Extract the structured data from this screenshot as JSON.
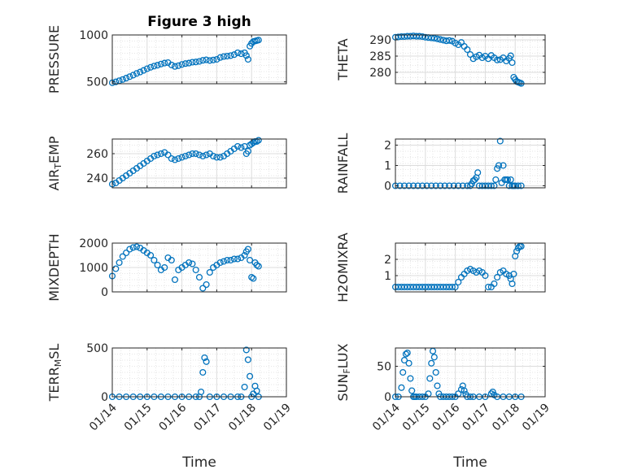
{
  "figure_title": "Figure 3 high",
  "marker_color": "#0072bd",
  "x_tick_labels": [
    "01/14",
    "01/15",
    "01/16",
    "01/17",
    "01/18",
    "01/19"
  ],
  "chart_data": [
    {
      "type": "scatter",
      "id": "pressure",
      "title": "Figure 3 high",
      "ylabel": "PRESSURE",
      "xlabel": "",
      "xlim": [
        0,
        5
      ],
      "ylim": [
        480,
        1000
      ],
      "yticks": [
        500,
        1000
      ],
      "xtick_labels_shown": false,
      "grid": true,
      "x": [
        0.0,
        0.1,
        0.2,
        0.3,
        0.4,
        0.5,
        0.6,
        0.7,
        0.8,
        0.9,
        1.0,
        1.1,
        1.2,
        1.3,
        1.4,
        1.5,
        1.6,
        1.7,
        1.8,
        1.9,
        2.0,
        2.1,
        2.2,
        2.3,
        2.4,
        2.5,
        2.6,
        2.7,
        2.8,
        2.9,
        3.0,
        3.1,
        3.2,
        3.3,
        3.4,
        3.5,
        3.6,
        3.7,
        3.8,
        3.85,
        3.9,
        3.95,
        4.0,
        4.05,
        4.1,
        4.15,
        4.2
      ],
      "y": [
        490,
        500,
        512,
        525,
        540,
        555,
        572,
        590,
        605,
        622,
        640,
        655,
        668,
        678,
        690,
        700,
        705,
        680,
        665,
        672,
        685,
        695,
        700,
        710,
        712,
        718,
        730,
        735,
        728,
        733,
        740,
        760,
        770,
        775,
        780,
        790,
        810,
        800,
        810,
        780,
        740,
        880,
        910,
        930,
        935,
        940,
        945
      ]
    },
    {
      "type": "scatter",
      "id": "theta",
      "title": "",
      "ylabel": "THETA",
      "xlabel": "",
      "xlim": [
        0,
        5
      ],
      "ylim": [
        276.5,
        291.5
      ],
      "yticks": [
        280,
        285,
        290
      ],
      "xtick_labels_shown": false,
      "grid": true,
      "x": [
        0.0,
        0.1,
        0.2,
        0.3,
        0.4,
        0.5,
        0.6,
        0.7,
        0.8,
        0.9,
        1.0,
        1.1,
        1.2,
        1.3,
        1.4,
        1.5,
        1.6,
        1.7,
        1.8,
        1.9,
        2.0,
        2.1,
        2.2,
        2.3,
        2.4,
        2.5,
        2.6,
        2.7,
        2.8,
        2.9,
        3.0,
        3.1,
        3.2,
        3.3,
        3.4,
        3.5,
        3.6,
        3.7,
        3.8,
        3.85,
        3.9,
        3.95,
        4.0,
        4.05,
        4.1,
        4.15,
        4.2
      ],
      "y": [
        290.8,
        290.9,
        291.0,
        291.0,
        291.1,
        291.1,
        291.2,
        291.1,
        291.1,
        291.0,
        290.8,
        290.7,
        290.6,
        290.5,
        290.3,
        290.1,
        289.9,
        289.7,
        289.8,
        289.6,
        289.0,
        288.5,
        289.2,
        288.0,
        287.0,
        285.5,
        284.2,
        284.8,
        285.3,
        284.5,
        285.0,
        284.2,
        285.2,
        284.5,
        283.8,
        283.9,
        284.5,
        283.5,
        284.3,
        285.1,
        283.0,
        278.5,
        277.8,
        277.2,
        277.0,
        276.8,
        276.6
      ]
    },
    {
      "type": "scatter",
      "id": "air_temp",
      "title": "",
      "ylabel": "AIR_TEMP",
      "xlabel": "",
      "xlim": [
        0,
        5
      ],
      "ylim": [
        232,
        272
      ],
      "yticks": [
        240,
        260
      ],
      "xtick_labels_shown": false,
      "grid": true,
      "x": [
        0.0,
        0.1,
        0.2,
        0.3,
        0.4,
        0.5,
        0.6,
        0.7,
        0.8,
        0.9,
        1.0,
        1.1,
        1.2,
        1.3,
        1.4,
        1.5,
        1.6,
        1.7,
        1.8,
        1.9,
        2.0,
        2.1,
        2.2,
        2.3,
        2.4,
        2.5,
        2.6,
        2.7,
        2.8,
        2.9,
        3.0,
        3.1,
        3.2,
        3.3,
        3.4,
        3.5,
        3.6,
        3.7,
        3.8,
        3.85,
        3.9,
        3.95,
        4.0,
        4.05,
        4.1,
        4.15,
        4.2
      ],
      "y": [
        235,
        236,
        238,
        240,
        242,
        244,
        246,
        248,
        250,
        252,
        254,
        256,
        258,
        259,
        260,
        261,
        259,
        256,
        255,
        256,
        257,
        258,
        259,
        260,
        260,
        259,
        258,
        259,
        260,
        258,
        257,
        257,
        258,
        260,
        262,
        264,
        266,
        265,
        266,
        260,
        262,
        267,
        268,
        269,
        270,
        270,
        271
      ]
    },
    {
      "type": "scatter",
      "id": "rainfall",
      "title": "",
      "ylabel": "RAINFALL",
      "xlabel": "",
      "xlim": [
        0,
        5
      ],
      "ylim": [
        -0.1,
        2.3
      ],
      "yticks": [
        0,
        1,
        2
      ],
      "xtick_labels_shown": false,
      "grid": true,
      "x": [
        0.0,
        0.15,
        0.3,
        0.45,
        0.6,
        0.75,
        0.9,
        1.05,
        1.2,
        1.35,
        1.5,
        1.65,
        1.8,
        1.95,
        2.1,
        2.25,
        2.4,
        2.5,
        2.55,
        2.6,
        2.65,
        2.7,
        2.75,
        2.8,
        2.9,
        3.0,
        3.1,
        3.2,
        3.3,
        3.35,
        3.4,
        3.45,
        3.5,
        3.55,
        3.6,
        3.65,
        3.7,
        3.75,
        3.8,
        3.85,
        3.9,
        3.95,
        4.0,
        4.1,
        4.2
      ],
      "y": [
        0,
        0,
        0,
        0,
        0,
        0,
        0,
        0,
        0,
        0,
        0,
        0,
        0,
        0,
        0,
        0,
        0,
        0,
        0.1,
        0.25,
        0.3,
        0.4,
        0.65,
        0,
        0,
        0,
        0,
        0,
        0,
        0.3,
        0.85,
        1.0,
        2.2,
        0.15,
        1.0,
        0.3,
        0.3,
        0.3,
        0,
        0.3,
        0,
        0,
        0,
        0,
        0
      ]
    },
    {
      "type": "scatter",
      "id": "mixdepth",
      "title": "",
      "ylabel": "MIXDEPTH",
      "xlabel": "",
      "xlim": [
        0,
        5
      ],
      "ylim": [
        0,
        2000
      ],
      "yticks": [
        0,
        1000,
        2000
      ],
      "xtick_labels_shown": false,
      "grid": true,
      "x": [
        0.0,
        0.1,
        0.2,
        0.3,
        0.4,
        0.5,
        0.6,
        0.7,
        0.8,
        0.9,
        1.0,
        1.1,
        1.2,
        1.3,
        1.4,
        1.5,
        1.6,
        1.7,
        1.8,
        1.9,
        2.0,
        2.1,
        2.2,
        2.3,
        2.4,
        2.5,
        2.6,
        2.7,
        2.8,
        2.9,
        3.0,
        3.1,
        3.2,
        3.3,
        3.4,
        3.5,
        3.6,
        3.7,
        3.8,
        3.85,
        3.9,
        3.95,
        4.0,
        4.05,
        4.1,
        4.15,
        4.2
      ],
      "y": [
        650,
        950,
        1200,
        1450,
        1600,
        1750,
        1820,
        1850,
        1800,
        1700,
        1600,
        1500,
        1300,
        1100,
        900,
        1000,
        1400,
        1300,
        500,
        900,
        1000,
        1100,
        1200,
        1150,
        900,
        600,
        150,
        300,
        800,
        1000,
        1100,
        1200,
        1250,
        1300,
        1300,
        1350,
        1350,
        1400,
        1500,
        1650,
        1750,
        1300,
        600,
        550,
        1200,
        1100,
        1050
      ]
    },
    {
      "type": "scatter",
      "id": "h2omixra",
      "title": "",
      "ylabel": "H2OMIXRA",
      "xlabel": "",
      "xlim": [
        0,
        5
      ],
      "ylim": [
        0,
        3
      ],
      "yticks": [
        1,
        2
      ],
      "xtick_labels_shown": false,
      "grid": true,
      "x": [
        0.0,
        0.1,
        0.2,
        0.3,
        0.4,
        0.5,
        0.6,
        0.7,
        0.8,
        0.9,
        1.0,
        1.1,
        1.2,
        1.3,
        1.4,
        1.5,
        1.6,
        1.7,
        1.8,
        1.9,
        2.0,
        2.1,
        2.2,
        2.3,
        2.4,
        2.5,
        2.6,
        2.7,
        2.8,
        2.9,
        3.0,
        3.1,
        3.2,
        3.3,
        3.4,
        3.5,
        3.6,
        3.7,
        3.8,
        3.85,
        3.9,
        3.95,
        4.0,
        4.05,
        4.1,
        4.15,
        4.2
      ],
      "y": [
        0.3,
        0.3,
        0.3,
        0.3,
        0.3,
        0.3,
        0.3,
        0.3,
        0.3,
        0.3,
        0.3,
        0.3,
        0.3,
        0.3,
        0.3,
        0.3,
        0.3,
        0.3,
        0.3,
        0.3,
        0.3,
        0.6,
        0.9,
        1.1,
        1.3,
        1.4,
        1.3,
        1.2,
        1.3,
        1.2,
        1.0,
        0.3,
        0.3,
        0.5,
        0.9,
        1.2,
        1.3,
        1.1,
        1.0,
        0.8,
        0.5,
        1.1,
        2.2,
        2.5,
        2.7,
        2.8,
        2.8
      ]
    },
    {
      "type": "scatter",
      "id": "terr_msl",
      "title": "",
      "ylabel": "TERR_MSL",
      "xlabel": "Time",
      "xlim": [
        0,
        5
      ],
      "ylim": [
        0,
        500
      ],
      "yticks": [
        0,
        500
      ],
      "xtick_labels_shown": true,
      "grid": true,
      "x": [
        0.0,
        0.2,
        0.4,
        0.6,
        0.8,
        1.0,
        1.2,
        1.4,
        1.6,
        1.8,
        2.0,
        2.2,
        2.4,
        2.5,
        2.55,
        2.6,
        2.65,
        2.7,
        2.8,
        3.0,
        3.2,
        3.4,
        3.6,
        3.7,
        3.8,
        3.85,
        3.9,
        3.95,
        4.0,
        4.05,
        4.1,
        4.15,
        4.2
      ],
      "y": [
        0,
        0,
        0,
        0,
        0,
        0,
        0,
        0,
        0,
        0,
        0,
        0,
        0,
        0,
        50,
        250,
        400,
        360,
        0,
        0,
        0,
        0,
        0,
        0,
        100,
        480,
        380,
        210,
        0,
        30,
        110,
        60,
        0
      ]
    },
    {
      "type": "scatter",
      "id": "sun_flux",
      "title": "",
      "ylabel": "SUN_FLUX",
      "xlabel": "Time",
      "xlim": [
        0,
        5
      ],
      "ylim": [
        0,
        80
      ],
      "yticks": [
        0,
        50
      ],
      "xtick_labels_shown": true,
      "grid": true,
      "x": [
        0.0,
        0.1,
        0.2,
        0.25,
        0.3,
        0.35,
        0.4,
        0.45,
        0.5,
        0.55,
        0.6,
        0.65,
        0.7,
        0.8,
        0.9,
        1.0,
        1.1,
        1.15,
        1.2,
        1.25,
        1.3,
        1.35,
        1.4,
        1.45,
        1.5,
        1.6,
        1.7,
        1.8,
        1.9,
        2.0,
        2.1,
        2.2,
        2.25,
        2.3,
        2.35,
        2.4,
        2.5,
        2.6,
        2.8,
        3.0,
        3.2,
        3.25,
        3.3,
        3.4,
        3.6,
        3.8,
        4.0,
        4.2
      ],
      "y": [
        0,
        0,
        15,
        40,
        60,
        70,
        72,
        55,
        30,
        10,
        0,
        0,
        0,
        0,
        0,
        0,
        5,
        30,
        55,
        75,
        65,
        40,
        18,
        5,
        0,
        0,
        0,
        0,
        0,
        0,
        5,
        12,
        18,
        10,
        4,
        0,
        0,
        0,
        0,
        0,
        5,
        8,
        3,
        0,
        0,
        0,
        0,
        0
      ]
    }
  ]
}
